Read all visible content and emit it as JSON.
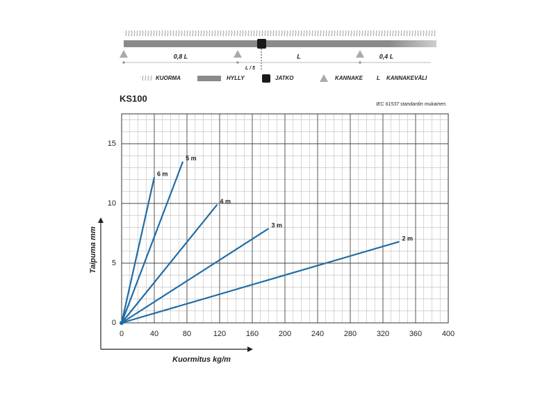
{
  "diagram": {
    "dims": [
      "0,8 L",
      "L",
      "0,4 L"
    ],
    "offset": "L / 5",
    "legend": {
      "load": "KUORMA",
      "shelf": "HYLLY",
      "joint": "JATKO",
      "bracket": "KANNAKE",
      "span_symbol": "L",
      "span": "KANNAKEVÄLI"
    }
  },
  "chart_data": {
    "type": "line",
    "title": "KS100",
    "note": "IEC 61537 standardin mukainen.",
    "xlabel": "Kuormitus kg/m",
    "ylabel": "Taipuma mm",
    "xlim": [
      0,
      400
    ],
    "ylim": [
      0,
      17.5
    ],
    "xticks": [
      0,
      40,
      80,
      120,
      160,
      200,
      240,
      280,
      320,
      360,
      400
    ],
    "yticks": [
      0,
      5,
      10,
      15
    ],
    "xminor": [
      10,
      20,
      30,
      50,
      60,
      70,
      90,
      100,
      110,
      130,
      140,
      150,
      170,
      180,
      190,
      210,
      220,
      230,
      250,
      260,
      270,
      290,
      300,
      310,
      330,
      340,
      350,
      370,
      380,
      390
    ],
    "yminor": [
      1,
      2,
      3,
      4,
      6,
      7,
      8,
      9,
      11,
      12,
      13,
      14,
      16,
      17
    ],
    "grid": true,
    "series": [
      {
        "name": "2 m",
        "color": "#1f6ca6",
        "x": [
          0,
          340
        ],
        "values": [
          0,
          6.8
        ]
      },
      {
        "name": "3 m",
        "color": "#1f6ca6",
        "x": [
          0,
          180
        ],
        "values": [
          0,
          7.9
        ]
      },
      {
        "name": "4 m",
        "color": "#1f6ca6",
        "x": [
          0,
          117
        ],
        "values": [
          0,
          9.9
        ]
      },
      {
        "name": "5 m",
        "color": "#1f6ca6",
        "x": [
          0,
          75
        ],
        "values": [
          0,
          13.5
        ]
      },
      {
        "name": "6 m",
        "color": "#1f6ca6",
        "x": [
          0,
          40
        ],
        "values": [
          0,
          12.2
        ]
      }
    ]
  }
}
